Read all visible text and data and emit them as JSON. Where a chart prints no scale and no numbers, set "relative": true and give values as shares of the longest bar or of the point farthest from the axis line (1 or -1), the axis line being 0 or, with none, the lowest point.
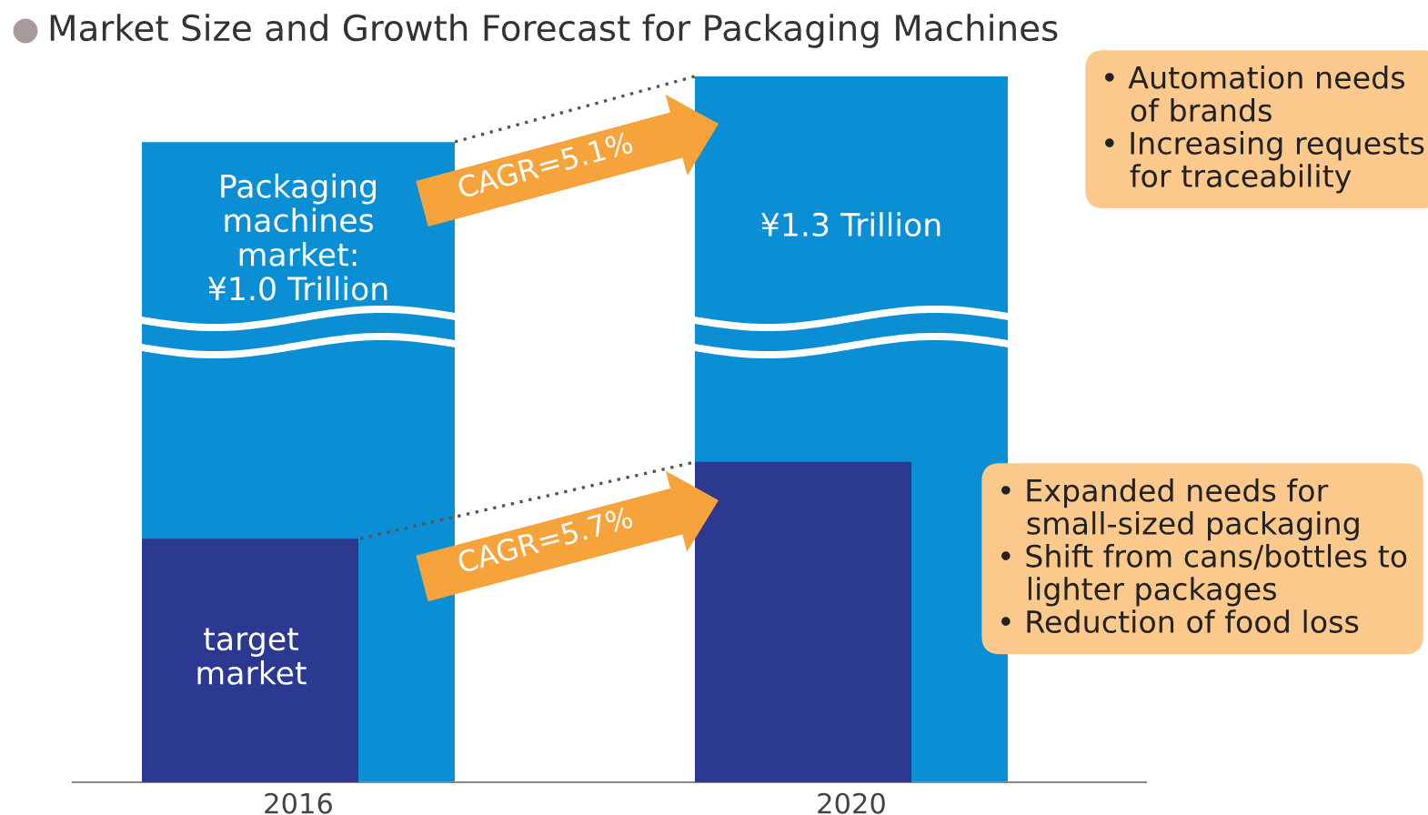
{
  "chart_data": {
    "type": "bar",
    "title": "Market Size and Growth Forecast for Packaging Machines",
    "categories": [
      "2016",
      "2020"
    ],
    "relative": true,
    "series": [
      {
        "color": "#0a8fd4",
        "values": [
          0.907,
          1
        ]
      },
      {
        "color": "#2b3990",
        "values": [
          0.345,
          0.454
        ]
      }
    ],
    "annotations": [
      "Packaging\nmachines\nmarket:\n¥1.0 Trillion",
      "¥1.3 Trillion",
      "target\nmarket",
      "CAGR=5.1%",
      "CAGR=5.7%",
      "• Automation needs\n   of brands\n• Increasing requests\n   for traceability",
      "• Expanded needs for\n   small-sized packaging\n• Shift from cans/bottles to\n   lighter packages\n• Reduction of food loss"
    ],
    "grid": false
  }
}
